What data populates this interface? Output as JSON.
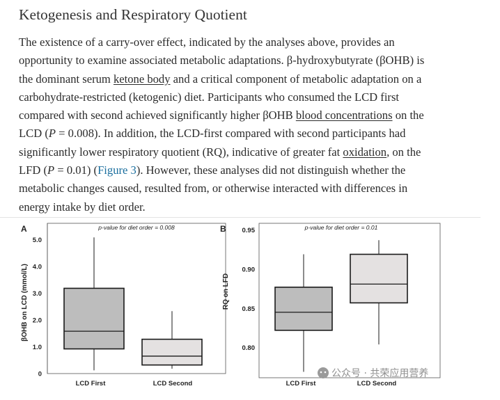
{
  "heading": "Ketogenesis and Respiratory Quotient",
  "paragraph": {
    "line1": {
      "a": "The existence of a carry-over effect, indicated by the analyses above, provides an"
    },
    "line2": {
      "a": "opportunity to examine associated metabolic adaptations. β-hydroxybutyrate (βOHB) is"
    },
    "line3": {
      "a": "the dominant serum ",
      "link": "ketone body",
      "b": " and a critical component of metabolic adaptation on a"
    },
    "line4": {
      "a": "carbohydrate-restricted (ketogenic) diet. Participants who consumed the LCD first"
    },
    "line5": {
      "a": "compared with second achieved significantly higher βOHB ",
      "link": "blood concentrations",
      "b": " on the"
    },
    "line6": {
      "a": "LCD (",
      "p": "P",
      "b": " = 0.008). In addition, the LCD-first compared with second participants had"
    },
    "line7": {
      "a": "significantly lower respiratory quotient (RQ), indicative of greater fat ",
      "link": "oxidation",
      "b": ", on the"
    },
    "line8": {
      "a": "LFD (",
      "p": "P",
      "b": " = 0.01) (",
      "fig": "Figure 3",
      "c": "). However, these analyses did not distinguish whether the"
    },
    "line9": {
      "a": "metabolic changes caused, resulted from, or otherwise interacted with differences in"
    },
    "line10": {
      "a": "energy intake by diet order."
    }
  },
  "watermark": "公众号 · 共荣应用营养",
  "colors": {
    "box_first": "#bdbdbd",
    "box_second": "#e4e1e1",
    "line": "#1a1a1a",
    "link": "#1a6e9e"
  },
  "chart_data": [
    {
      "type": "box",
      "panel_label": "A",
      "title": "p-value for diet order = 0.008",
      "ylabel": "βOHB on LCD (mmol/L)",
      "ylim": [
        0,
        5.5
      ],
      "yticks": [
        0,
        1.0,
        2.0,
        3.0,
        4.0,
        5.0
      ],
      "ytick_labels": [
        "0",
        "1.0",
        "2.0",
        "3.0",
        "4.0",
        "5.0"
      ],
      "categories": [
        "LCD First",
        "LCD Second"
      ],
      "boxes": [
        {
          "name": "LCD First",
          "min": 0.12,
          "q1": 0.92,
          "median": 1.58,
          "q3": 3.18,
          "max": 5.08,
          "fill": "#bdbdbd"
        },
        {
          "name": "LCD Second",
          "min": 0.18,
          "q1": 0.32,
          "median": 0.65,
          "q3": 1.28,
          "max": 2.33,
          "fill": "#e4e1e1"
        }
      ]
    },
    {
      "type": "box",
      "panel_label": "B",
      "title": "p-value for diet order = 0.01",
      "ylabel": "RQ on LFD",
      "ylim": [
        0.765,
        0.955
      ],
      "yticks": [
        0.8,
        0.85,
        0.9,
        0.95
      ],
      "ytick_labels": [
        "0.80",
        "0.85",
        "0.90",
        "0.95"
      ],
      "categories": [
        "LCD First",
        "LCD Second"
      ],
      "boxes": [
        {
          "name": "LCD First",
          "min": 0.769,
          "q1": 0.822,
          "median": 0.845,
          "q3": 0.877,
          "max": 0.919,
          "fill": "#bdbdbd"
        },
        {
          "name": "LCD Second",
          "min": 0.804,
          "q1": 0.857,
          "median": 0.881,
          "q3": 0.919,
          "max": 0.937,
          "fill": "#e4e1e1"
        }
      ]
    }
  ]
}
